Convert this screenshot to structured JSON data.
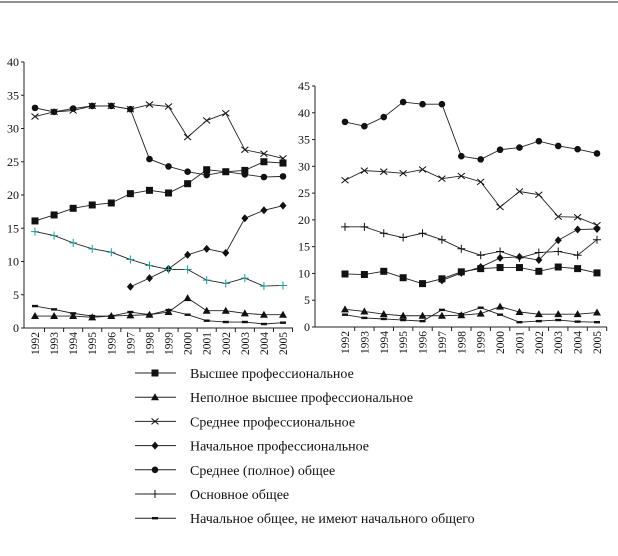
{
  "chart_data": [
    {
      "type": "line",
      "ylim": [
        0,
        40
      ],
      "yticks": [
        0,
        5,
        10,
        15,
        20,
        25,
        30,
        35,
        40
      ],
      "categories": [
        "1992",
        "1993",
        "1994",
        "1995",
        "1996",
        "1997",
        "1998",
        "1999",
        "2000",
        "2001",
        "2002",
        "2003",
        "2004",
        "2005"
      ],
      "series": [
        {
          "name": "Высшее профессиональное",
          "marker": "square",
          "values": [
            16.1,
            17,
            18,
            18.5,
            18.8,
            20.2,
            20.7,
            20.3,
            21.7,
            23.8,
            23.5,
            23.7,
            25,
            24.8
          ]
        },
        {
          "name": "Неполное высшее профессиональное",
          "marker": "triangle",
          "values": [
            1.8,
            1.8,
            1.8,
            1.6,
            1.8,
            1.9,
            2.0,
            2.4,
            4.5,
            2.6,
            2.6,
            2.2,
            2.0,
            2.0
          ]
        },
        {
          "name": "Среднее профессиональное",
          "marker": "x",
          "values": [
            31.8,
            32.5,
            32.7,
            33.4,
            33.4,
            32.9,
            33.6,
            33.3,
            28.7,
            31.2,
            32.3,
            26.8,
            26.2,
            25.5
          ]
        },
        {
          "name": "Начальное профессиональное",
          "marker": "diamond",
          "values": [
            null,
            null,
            null,
            null,
            null,
            6.2,
            7.5,
            8.9,
            11.0,
            11.9,
            11.3,
            16.5,
            17.7,
            18.4
          ]
        },
        {
          "name": "Среднее (полное) общее",
          "marker": "circle",
          "values": [
            33.1,
            32.5,
            33.0,
            33.4,
            33.4,
            32.9,
            25.4,
            24.3,
            23.5,
            23.0,
            23.5,
            23.1,
            22.7,
            22.8
          ]
        },
        {
          "name": "Основное общее",
          "marker": "plus",
          "color": "#1a9a9a",
          "values": [
            14.5,
            13.9,
            12.8,
            11.9,
            11.4,
            10.3,
            9.4,
            8.8,
            8.8,
            7.2,
            6.7,
            7.5,
            6.3,
            6.4
          ]
        },
        {
          "name": "Начальное общее, не имеют начального общего",
          "marker": "dash",
          "values": [
            3.3,
            2.8,
            2.2,
            1.8,
            1.8,
            2.4,
            2.0,
            2.7,
            2.0,
            1.1,
            0.9,
            0.9,
            0.6,
            0.8
          ]
        }
      ]
    },
    {
      "type": "line",
      "ylim": [
        0,
        45
      ],
      "yticks": [
        0,
        5,
        10,
        15,
        20,
        25,
        30,
        35,
        40,
        45
      ],
      "categories": [
        "1992",
        "1993",
        "1994",
        "1995",
        "1996",
        "1997",
        "1998",
        "1999",
        "2000",
        "2001",
        "2002",
        "2003",
        "2004",
        "2005"
      ],
      "series": [
        {
          "name": "Высшее профессиональное",
          "marker": "square",
          "values": [
            9.9,
            9.8,
            10.4,
            9.2,
            8.1,
            9.0,
            10.3,
            10.9,
            11.1,
            11.1,
            10.4,
            11.2,
            10.9,
            10.1
          ]
        },
        {
          "name": "Неполное высшее профессиональное",
          "marker": "triangle",
          "values": [
            3.3,
            2.9,
            2.4,
            2.1,
            2.1,
            2.1,
            2.2,
            2.5,
            3.8,
            2.8,
            2.4,
            2.4,
            2.4,
            2.7
          ]
        },
        {
          "name": "Среднее профессиональное",
          "marker": "x",
          "values": [
            27.4,
            29.2,
            29.0,
            28.7,
            29.4,
            27.7,
            28.2,
            27.1,
            22.4,
            25.3,
            24.7,
            20.6,
            20.5,
            19.0
          ]
        },
        {
          "name": "Начальное профессиональное",
          "marker": "diamond",
          "values": [
            null,
            null,
            null,
            null,
            null,
            8.7,
            10.1,
            11.2,
            12.9,
            13.1,
            12.5,
            16.2,
            18.2,
            18.3
          ]
        },
        {
          "name": "Среднее (полное) общее",
          "marker": "circle",
          "values": [
            38.3,
            37.5,
            39.2,
            42.0,
            41.6,
            41.6,
            31.9,
            31.3,
            33.1,
            33.5,
            34.7,
            33.8,
            33.2,
            32.4
          ]
        },
        {
          "name": "Основное общее",
          "marker": "plus",
          "values": [
            18.7,
            18.7,
            17.5,
            16.7,
            17.5,
            16.3,
            14.6,
            13.4,
            14.1,
            12.9,
            13.9,
            14.1,
            13.4,
            16.3
          ]
        },
        {
          "name": "Начальное общее, не имеют начального общего",
          "marker": "dash",
          "values": [
            2.3,
            1.7,
            1.5,
            1.3,
            1.1,
            3.2,
            2.4,
            3.6,
            2.3,
            0.9,
            1.1,
            1.3,
            1.0,
            0.9
          ]
        }
      ]
    }
  ],
  "legend": [
    {
      "label": "Высшее профессиональное",
      "marker": "square"
    },
    {
      "label": "Неполное высшее профессиональное",
      "marker": "triangle"
    },
    {
      "label": "Среднее профессиональное",
      "marker": "x"
    },
    {
      "label": "Начальное профессиональное",
      "marker": "diamond"
    },
    {
      "label": "Среднее (полное) общее",
      "marker": "circle"
    },
    {
      "label": "Основное общее",
      "marker": "plus"
    },
    {
      "label": "Начальное общее, не имеют начального общего",
      "marker": "dash"
    }
  ]
}
